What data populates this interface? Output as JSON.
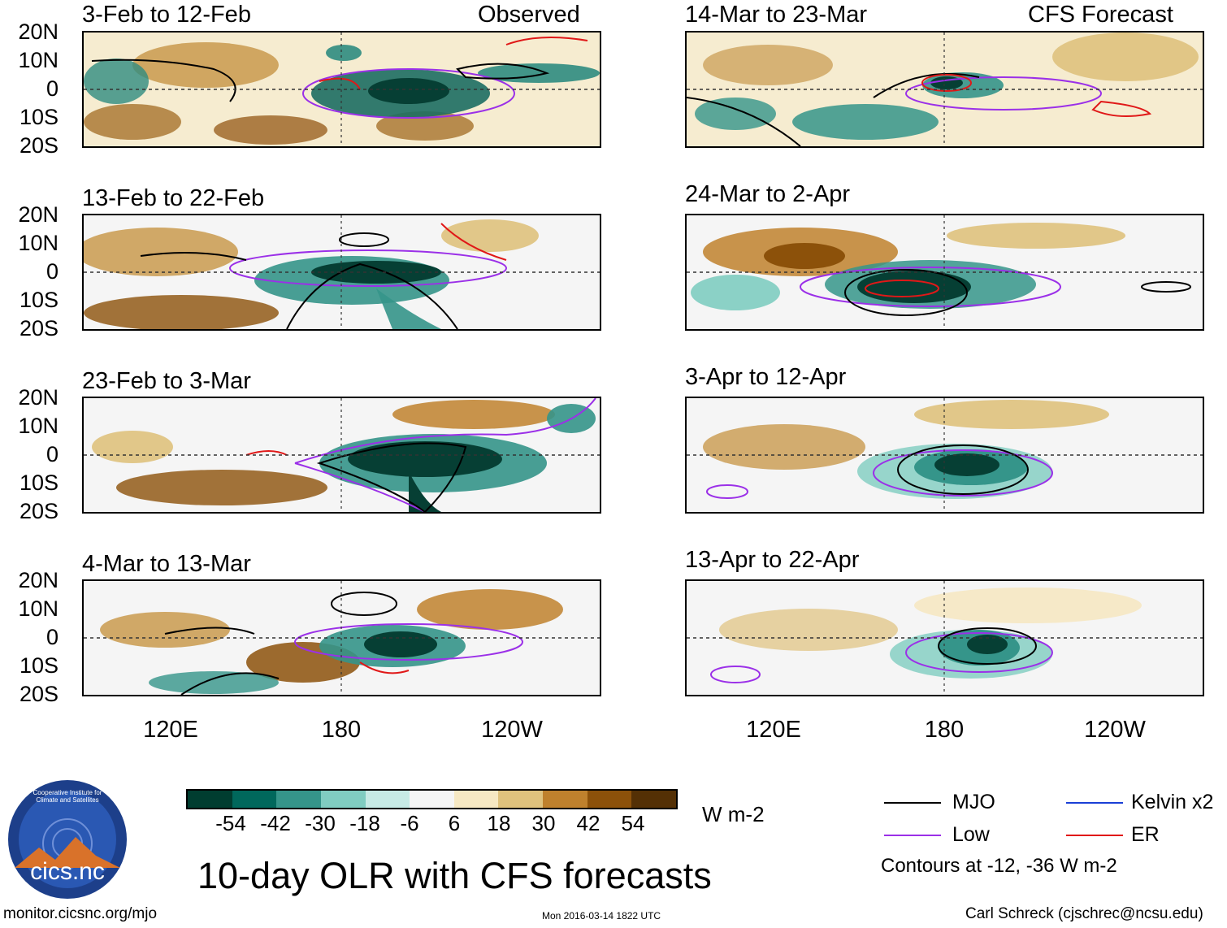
{
  "header": {
    "observed_label": "Observed",
    "forecast_label": "CFS Forecast"
  },
  "observed_panels": [
    {
      "title": "3-Feb to 12-Feb"
    },
    {
      "title": "13-Feb to 22-Feb"
    },
    {
      "title": "23-Feb to 3-Mar"
    },
    {
      "title": "4-Mar to 13-Mar"
    }
  ],
  "forecast_panels": [
    {
      "title": "14-Mar to 23-Mar"
    },
    {
      "title": "24-Mar to 2-Apr"
    },
    {
      "title": "3-Apr to 12-Apr"
    },
    {
      "title": "13-Apr to 22-Apr"
    }
  ],
  "latitude_labels": [
    "20N",
    "10N",
    "0",
    "10S",
    "20S"
  ],
  "longitude_labels": [
    "120E",
    "180",
    "120W"
  ],
  "colorbar": {
    "colors": [
      "#003d30",
      "#00685c",
      "#35958a",
      "#80cdc1",
      "#c7eae5",
      "#f5f5f5",
      "#f6e8c3",
      "#dfc27d",
      "#bf812d",
      "#8c510a",
      "#543005"
    ],
    "labels": [
      "-54",
      "-42",
      "-30",
      "-18",
      "-6",
      "6",
      "18",
      "30",
      "42",
      "54"
    ],
    "units": "W m-2"
  },
  "legend": {
    "items": [
      {
        "label": "MJO",
        "color": "#000000"
      },
      {
        "label": "Kelvin x2",
        "color": "#1a3fd6"
      },
      {
        "label": "Low",
        "color": "#9b30e8"
      },
      {
        "label": "ER",
        "color": "#e01818"
      }
    ],
    "note": "Contours at -12, -36 W m-2"
  },
  "main_title": "10-day OLR with CFS forecasts",
  "logo": {
    "text": "cics.nc",
    "ring_text": "Cooperative Institute for Climate and Satellites"
  },
  "footer": {
    "url": "monitor.cicsnc.org/mjo",
    "timestamp": "Mon 2016-03-14 1822 UTC",
    "author": "Carl Schreck (cjschrec@ncsu.edu)"
  }
}
